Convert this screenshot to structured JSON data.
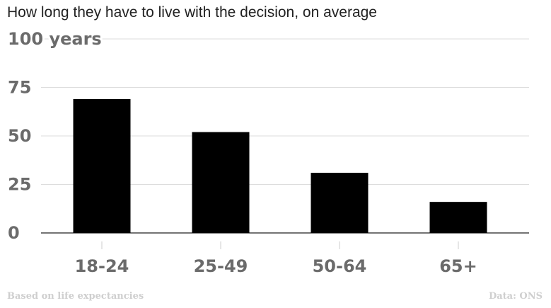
{
  "chart_data": {
    "type": "bar",
    "title": "How long they have to live with the decision, on average",
    "categories": [
      "18-24",
      "25-49",
      "50-64",
      "65+"
    ],
    "values": [
      69,
      52,
      31,
      16
    ],
    "ylim": [
      0,
      100
    ],
    "yticks": [
      0,
      25,
      50,
      75,
      100
    ],
    "ytick_labels": [
      "0",
      "25",
      "50",
      "75",
      "100 years"
    ],
    "grid": true,
    "bar_color": "#000000",
    "grid_color": "#dddddd"
  },
  "footer": {
    "note": "Based on life expectancies",
    "source": "Data: ONS"
  }
}
